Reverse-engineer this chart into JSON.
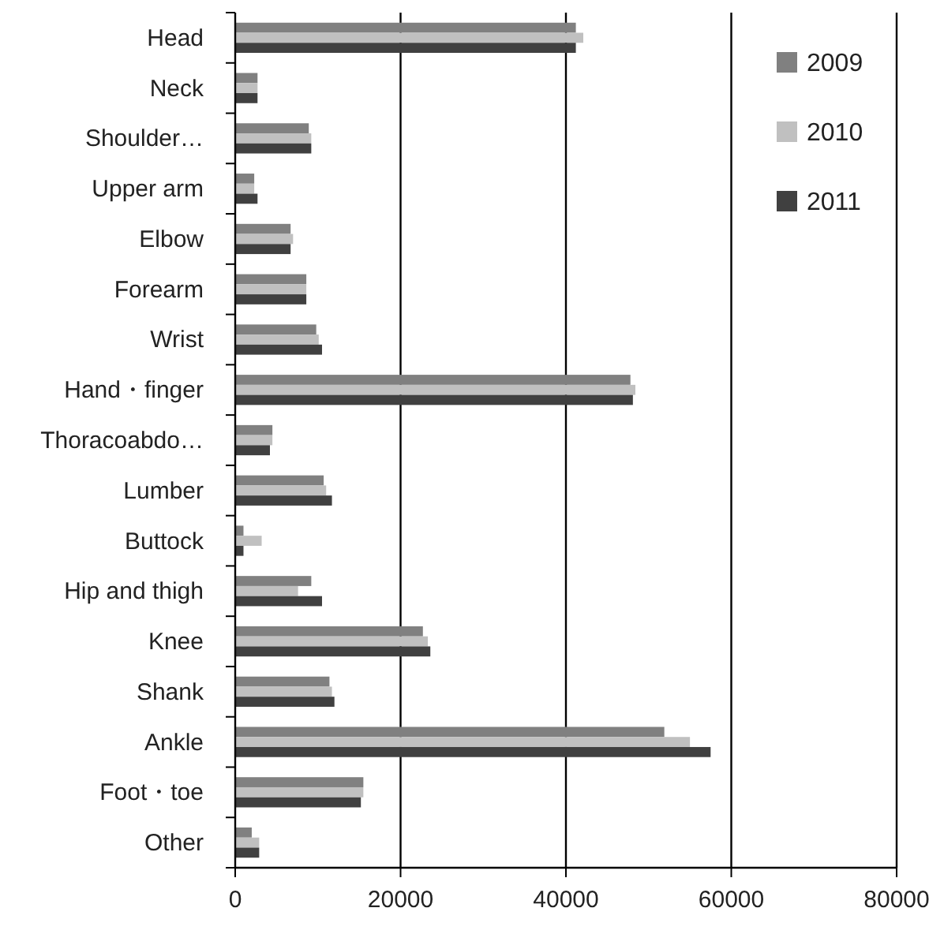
{
  "chart_data": {
    "type": "bar",
    "orientation": "horizontal",
    "categories": [
      "Head",
      "Neck",
      "Shoulder…",
      "Upper arm",
      "Elbow",
      "Forearm",
      "Wrist",
      "Hand・finger",
      "Thoracoabdo…",
      "Lumber",
      "Buttock",
      "Hip and thigh",
      "Knee",
      "Shank",
      "Ankle",
      "Foot・toe",
      "Other"
    ],
    "series": [
      {
        "name": "2009",
        "color": "#808080",
        "values": [
          41200,
          2700,
          8900,
          2300,
          6700,
          8600,
          9800,
          47800,
          4500,
          10700,
          1000,
          9200,
          22700,
          11400,
          51900,
          15500,
          2000
        ]
      },
      {
        "name": "2010",
        "color": "#c0c0c0",
        "values": [
          42100,
          2700,
          9200,
          2300,
          7000,
          8600,
          10100,
          48400,
          4500,
          11000,
          3200,
          7600,
          23300,
          11700,
          55000,
          15500,
          2900
        ]
      },
      {
        "name": "2011",
        "color": "#404040",
        "values": [
          41200,
          2700,
          9200,
          2700,
          6700,
          8600,
          10500,
          48100,
          4200,
          11700,
          1000,
          10500,
          23600,
          12000,
          57500,
          15200,
          2900
        ]
      }
    ],
    "xlim": [
      0,
      80000
    ],
    "xticks": [
      0,
      20000,
      40000,
      60000,
      80000
    ],
    "grid": "x",
    "legend": "top right"
  }
}
